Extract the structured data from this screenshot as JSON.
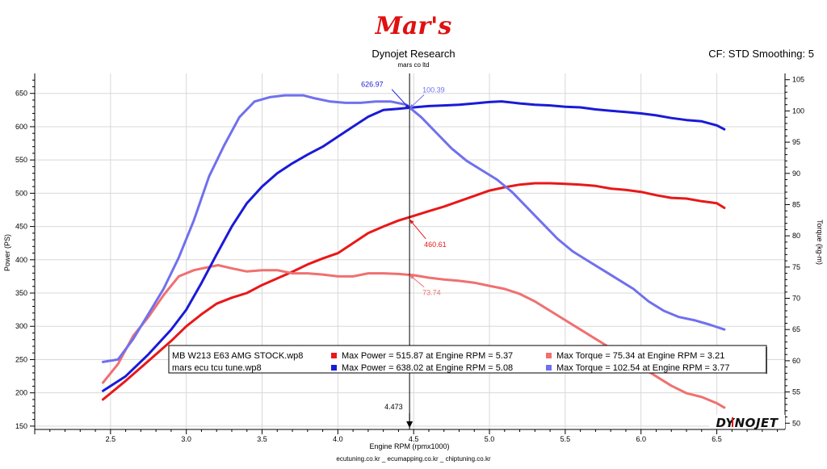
{
  "header": {
    "logo_text": "Mar's",
    "title": "Dynojet Research",
    "subtitle": "mars co ltd",
    "cf_label": "CF: STD Smoothing: 5"
  },
  "footer": {
    "websites": "ecutuning.co.kr _ ecumapping.co.kr _ chiptuning.co.kr",
    "brand": "DYNOJET"
  },
  "colors": {
    "stock_power": "#e81818",
    "stock_torque": "#f07070",
    "tune_power": "#1a1ad8",
    "tune_torque": "#7070ee"
  },
  "chart_data": {
    "type": "line",
    "xlabel": "Engine RPM (rpmx1000)",
    "ylabel_left": "Power (PS)",
    "ylabel_right": "Torque (kg-m)",
    "xlim": [
      2.0,
      6.95
    ],
    "ylim_left": [
      145,
      680
    ],
    "ylim_right": [
      49,
      106
    ],
    "x_ticks": [
      "2.5",
      "3.0",
      "3.5",
      "4.0",
      "4.5",
      "5.0",
      "5.5",
      "6.0",
      "6.5"
    ],
    "y_left_ticks": [
      "150",
      "200",
      "250",
      "300",
      "350",
      "400",
      "450",
      "500",
      "550",
      "600",
      "650"
    ],
    "y_right_ticks": [
      "50",
      "55",
      "60",
      "65",
      "70",
      "75",
      "80",
      "85",
      "90",
      "95",
      "100",
      "105"
    ],
    "grid": true,
    "cursor": {
      "x": 4.473,
      "label": "4.473"
    },
    "series": [
      {
        "name": "MB W213 E63 AMG STOCK.wp8",
        "quantity": "power",
        "axis": "left",
        "x": [
          2.45,
          2.6,
          2.75,
          2.9,
          3.0,
          3.1,
          3.2,
          3.3,
          3.4,
          3.5,
          3.6,
          3.7,
          3.8,
          3.9,
          4.0,
          4.1,
          4.2,
          4.3,
          4.4,
          4.5,
          4.6,
          4.7,
          4.8,
          4.9,
          5.0,
          5.1,
          5.2,
          5.3,
          5.4,
          5.5,
          5.6,
          5.7,
          5.8,
          5.9,
          6.0,
          6.1,
          6.2,
          6.3,
          6.4,
          6.5,
          6.55
        ],
        "y": [
          190,
          218,
          248,
          278,
          300,
          318,
          334,
          343,
          350,
          362,
          372,
          382,
          393,
          402,
          410,
          425,
          440,
          450,
          459,
          466,
          473,
          480,
          488,
          496,
          504,
          509,
          513,
          515,
          515,
          514,
          513,
          511,
          507,
          505,
          502,
          497,
          493,
          492,
          488,
          485,
          478
        ]
      },
      {
        "name": "MB W213 E63 AMG STOCK.wp8",
        "quantity": "torque",
        "axis": "right",
        "x": [
          2.45,
          2.55,
          2.65,
          2.75,
          2.85,
          2.95,
          3.05,
          3.15,
          3.21,
          3.3,
          3.4,
          3.5,
          3.6,
          3.7,
          3.8,
          3.9,
          4.0,
          4.1,
          4.2,
          4.3,
          4.4,
          4.5,
          4.6,
          4.7,
          4.8,
          4.9,
          5.0,
          5.1,
          5.2,
          5.3,
          5.4,
          5.5,
          5.6,
          5.7,
          5.8,
          5.9,
          6.0,
          6.1,
          6.2,
          6.3,
          6.4,
          6.5,
          6.55
        ],
        "y": [
          56.5,
          59.5,
          64,
          67,
          70.5,
          73.5,
          74.5,
          75,
          75.3,
          74.8,
          74.3,
          74.5,
          74.5,
          74.0,
          74.0,
          73.8,
          73.5,
          73.5,
          74.0,
          74.0,
          73.9,
          73.7,
          73.3,
          73.0,
          72.8,
          72.5,
          72.0,
          71.5,
          70.7,
          69.5,
          68.0,
          66.5,
          65.0,
          63.5,
          62.0,
          60.5,
          59.0,
          57.5,
          56.0,
          54.8,
          54.2,
          53.2,
          52.5
        ]
      },
      {
        "name": "mars ecu tcu tune.wp8",
        "quantity": "power",
        "axis": "left",
        "x": [
          2.45,
          2.6,
          2.75,
          2.9,
          3.0,
          3.1,
          3.2,
          3.3,
          3.4,
          3.5,
          3.6,
          3.7,
          3.8,
          3.9,
          4.0,
          4.1,
          4.2,
          4.3,
          4.4,
          4.5,
          4.6,
          4.7,
          4.8,
          4.9,
          5.0,
          5.08,
          5.2,
          5.3,
          5.4,
          5.5,
          5.6,
          5.7,
          5.8,
          5.9,
          6.0,
          6.1,
          6.2,
          6.3,
          6.4,
          6.5,
          6.55
        ],
        "y": [
          203,
          225,
          258,
          295,
          325,
          365,
          408,
          450,
          485,
          510,
          530,
          545,
          558,
          570,
          585,
          600,
          615,
          625,
          627,
          629,
          631,
          632,
          633,
          635,
          637,
          638,
          635,
          633,
          632,
          630,
          629,
          626,
          624,
          622,
          620,
          617,
          613,
          610,
          608,
          602,
          596
        ]
      },
      {
        "name": "mars ecu tcu tune.wp8",
        "quantity": "torque",
        "axis": "right",
        "x": [
          2.45,
          2.55,
          2.65,
          2.75,
          2.85,
          2.95,
          3.05,
          3.15,
          3.25,
          3.35,
          3.45,
          3.55,
          3.65,
          3.77,
          3.85,
          3.95,
          4.05,
          4.15,
          4.25,
          4.35,
          4.45,
          4.55,
          4.65,
          4.75,
          4.85,
          4.95,
          5.05,
          5.15,
          5.25,
          5.35,
          5.45,
          5.55,
          5.65,
          5.75,
          5.85,
          5.95,
          6.05,
          6.15,
          6.25,
          6.35,
          6.45,
          6.55
        ],
        "y": [
          59.8,
          60.2,
          63.5,
          67.5,
          71.5,
          76.5,
          82.5,
          89.5,
          94.5,
          99,
          101.5,
          102.2,
          102.5,
          102.5,
          102,
          101.5,
          101.3,
          101.3,
          101.5,
          101.5,
          101,
          99,
          96.5,
          94,
          92,
          90.5,
          89,
          87,
          84.5,
          82,
          79.5,
          77.5,
          76,
          74.5,
          73,
          71.5,
          69.5,
          68,
          67,
          66.5,
          65.8,
          65
        ]
      }
    ],
    "legend": [
      {
        "file": "MB W213 E63 AMG STOCK.wp8",
        "power_text": "Max Power = 515.87 at Engine RPM = 5.37",
        "torque_text": "Max Torque = 75.34 at Engine RPM = 3.21"
      },
      {
        "file": "mars ecu tcu tune.wp8",
        "power_text": "Max Power = 638.02 at Engine RPM = 5.08",
        "torque_text": "Max Torque = 102.54 at Engine RPM = 3.77"
      }
    ],
    "annotations": [
      {
        "text": "626.97",
        "series": 2,
        "x": 4.473,
        "y": 626.97
      },
      {
        "text": "100.39",
        "series": 3,
        "x": 4.473,
        "y": 100.39
      },
      {
        "text": "460.61",
        "series": 0,
        "x": 4.473,
        "y": 460.61
      },
      {
        "text": "73.74",
        "series": 1,
        "x": 4.473,
        "y": 73.74
      }
    ]
  }
}
